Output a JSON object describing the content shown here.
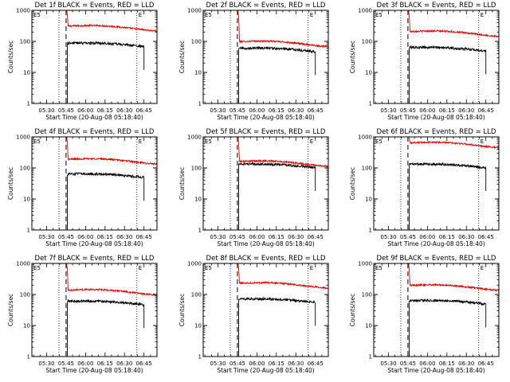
{
  "figure": {
    "panels": [
      {
        "title": "Det 1f BLACK = Events, RED = LLD",
        "events_level": 80,
        "lld_level": 270
      },
      {
        "title": "Det 2f BLACK = Events, RED = LLD",
        "events_level": 55,
        "lld_level": 85
      },
      {
        "title": "Det 3f BLACK = Events, RED = LLD",
        "events_level": 58,
        "lld_level": 180
      },
      {
        "title": "Det 4f BLACK = Events, RED = LLD",
        "events_level": 58,
        "lld_level": 165
      },
      {
        "title": "Det 5f BLACK = Events, RED = LLD",
        "events_level": 120,
        "lld_level": 140
      },
      {
        "title": "Det 6f BLACK = Events, RED = LLD",
        "events_level": 120,
        "lld_level": 560
      },
      {
        "title": "Det 7f BLACK = Events, RED = LLD",
        "events_level": 55,
        "lld_level": 120
      },
      {
        "title": "Det 8f BLACK = Events, RED = LLD",
        "events_level": 65,
        "lld_level": 200
      },
      {
        "title": "Det 9f BLACK = Events, RED = LLD",
        "events_level": 58,
        "lld_level": 170
      }
    ],
    "ylabel": "Counts/sec",
    "xlabel": "Start Time (20-Aug-08 05:18:40)",
    "marker_left": "E5",
    "marker_right": "E",
    "colors": {
      "events": "#000000",
      "lld": "#dd0000",
      "axes": "#000000"
    }
  },
  "chart_data": {
    "type": "line",
    "scale_y": "log",
    "ylim": [
      1,
      1000
    ],
    "yticks": [
      1,
      10,
      100,
      1000
    ],
    "ytick_labels": [
      "1",
      "10",
      "100",
      "1000"
    ],
    "xlim": [
      "05:18:40",
      "06:55:00"
    ],
    "xticks": [
      "05:30",
      "05:45",
      "06:00",
      "06:15",
      "06:30",
      "06:45"
    ],
    "series": [
      {
        "name": "BLACK = Events",
        "color": "#000000",
        "x_start": "05:46:00",
        "x_end": "06:45:00"
      },
      {
        "name": "RED = LLD",
        "color": "#dd0000",
        "x_start": "05:18:40",
        "x_end": "06:55:00"
      }
    ],
    "vertical_dotted": [
      "05:18:40",
      "05:39:30",
      "06:39:30"
    ],
    "vertical_dashed": [
      "05:45:00"
    ]
  }
}
